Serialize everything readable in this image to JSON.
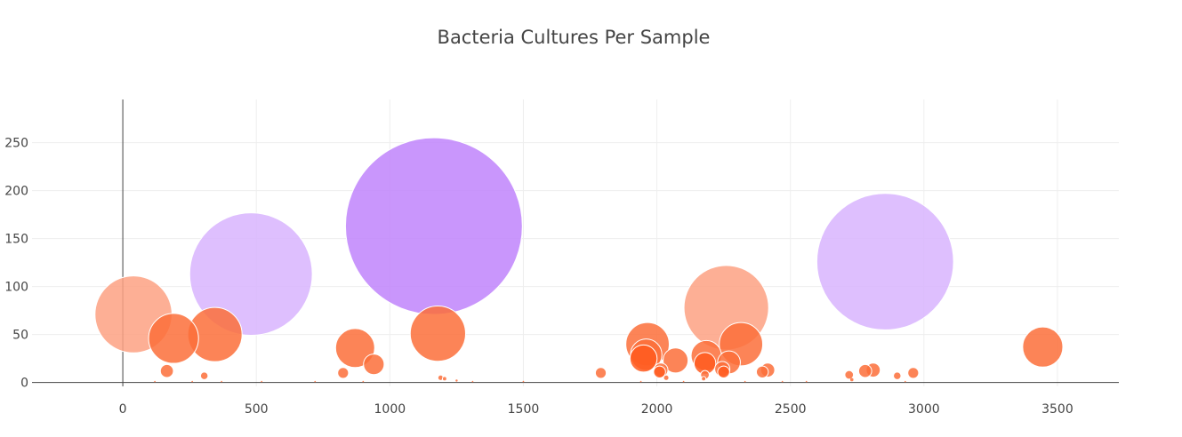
{
  "chart_data": {
    "type": "scatter",
    "title": "Bacteria Cultures Per Sample",
    "xlabel": "",
    "ylabel": "",
    "xlim": [
      -340,
      3730
    ],
    "ylim": [
      -4,
      295
    ],
    "xticks": [
      0,
      500,
      1000,
      1500,
      2000,
      2500,
      3000,
      3500
    ],
    "yticks": [
      0,
      50,
      100,
      150,
      200,
      250
    ],
    "xtick_labels": [
      "0",
      "500",
      "1000",
      "1500",
      "2000",
      "2500",
      "3000",
      "3500"
    ],
    "ytick_labels": [
      "0",
      "50",
      "100",
      "150",
      "200",
      "250"
    ],
    "grid": true,
    "legend": "none",
    "colors": {
      "light_orange": "#fda182",
      "orange": "#fb6f3a",
      "dark_orange": "#ff5a1f",
      "light_purple": "#d8b4fe",
      "purple": "#c084fc"
    },
    "points": [
      {
        "x": 40,
        "y": 71,
        "size": 71,
        "color": "light_orange"
      },
      {
        "x": 165,
        "y": 12,
        "size": 12,
        "color": "orange"
      },
      {
        "x": 190,
        "y": 46,
        "size": 46,
        "color": "orange"
      },
      {
        "x": 305,
        "y": 7,
        "size": 7,
        "color": "orange"
      },
      {
        "x": 345,
        "y": 50,
        "size": 50,
        "color": "orange"
      },
      {
        "x": 480,
        "y": 113,
        "size": 113,
        "color": "light_purple"
      },
      {
        "x": 825,
        "y": 10,
        "size": 10,
        "color": "orange"
      },
      {
        "x": 870,
        "y": 36,
        "size": 36,
        "color": "orange"
      },
      {
        "x": 940,
        "y": 19,
        "size": 19,
        "color": "orange"
      },
      {
        "x": 1165,
        "y": 163,
        "size": 163,
        "color": "purple"
      },
      {
        "x": 1180,
        "y": 51,
        "size": 51,
        "color": "orange"
      },
      {
        "x": 1190,
        "y": 5,
        "size": 5,
        "color": "orange"
      },
      {
        "x": 1205,
        "y": 4,
        "size": 4,
        "color": "orange"
      },
      {
        "x": 1790,
        "y": 10,
        "size": 10,
        "color": "orange"
      },
      {
        "x": 1965,
        "y": 40,
        "size": 40,
        "color": "orange"
      },
      {
        "x": 1960,
        "y": 29,
        "size": 29,
        "color": "orange"
      },
      {
        "x": 1950,
        "y": 25,
        "size": 25,
        "color": "dark_orange"
      },
      {
        "x": 2015,
        "y": 13,
        "size": 13,
        "color": "orange"
      },
      {
        "x": 2010,
        "y": 11,
        "size": 11,
        "color": "dark_orange"
      },
      {
        "x": 2035,
        "y": 5,
        "size": 5,
        "color": "orange"
      },
      {
        "x": 2070,
        "y": 23,
        "size": 23,
        "color": "orange"
      },
      {
        "x": 2185,
        "y": 28,
        "size": 28,
        "color": "orange"
      },
      {
        "x": 2180,
        "y": 20,
        "size": 20,
        "color": "dark_orange"
      },
      {
        "x": 2180,
        "y": 8,
        "size": 8,
        "color": "orange"
      },
      {
        "x": 2175,
        "y": 4,
        "size": 4,
        "color": "orange"
      },
      {
        "x": 2260,
        "y": 78,
        "size": 78,
        "color": "light_orange"
      },
      {
        "x": 2315,
        "y": 40,
        "size": 40,
        "color": "orange"
      },
      {
        "x": 2270,
        "y": 21,
        "size": 21,
        "color": "orange"
      },
      {
        "x": 2245,
        "y": 14,
        "size": 14,
        "color": "orange"
      },
      {
        "x": 2250,
        "y": 11,
        "size": 11,
        "color": "dark_orange"
      },
      {
        "x": 2395,
        "y": 11,
        "size": 11,
        "color": "orange"
      },
      {
        "x": 2415,
        "y": 13,
        "size": 13,
        "color": "orange"
      },
      {
        "x": 2855,
        "y": 126,
        "size": 126,
        "color": "light_purple"
      },
      {
        "x": 2720,
        "y": 8,
        "size": 8,
        "color": "orange"
      },
      {
        "x": 2730,
        "y": 3,
        "size": 3,
        "color": "orange"
      },
      {
        "x": 2780,
        "y": 12,
        "size": 12,
        "color": "orange"
      },
      {
        "x": 2810,
        "y": 13,
        "size": 13,
        "color": "orange"
      },
      {
        "x": 2900,
        "y": 7,
        "size": 7,
        "color": "orange"
      },
      {
        "x": 2960,
        "y": 10,
        "size": 10,
        "color": "orange"
      },
      {
        "x": 3445,
        "y": 37,
        "size": 37,
        "color": "orange"
      },
      {
        "x": 120,
        "y": 1,
        "size": 1,
        "color": "orange"
      },
      {
        "x": 260,
        "y": 1,
        "size": 1,
        "color": "orange"
      },
      {
        "x": 370,
        "y": 1,
        "size": 1,
        "color": "orange"
      },
      {
        "x": 520,
        "y": 1,
        "size": 1,
        "color": "orange"
      },
      {
        "x": 720,
        "y": 1,
        "size": 1,
        "color": "orange"
      },
      {
        "x": 900,
        "y": 1,
        "size": 1,
        "color": "orange"
      },
      {
        "x": 1250,
        "y": 2,
        "size": 2,
        "color": "orange"
      },
      {
        "x": 1310,
        "y": 1,
        "size": 1,
        "color": "orange"
      },
      {
        "x": 1500,
        "y": 1,
        "size": 1,
        "color": "orange"
      },
      {
        "x": 1940,
        "y": 1,
        "size": 1,
        "color": "orange"
      },
      {
        "x": 2100,
        "y": 1,
        "size": 1,
        "color": "orange"
      },
      {
        "x": 2330,
        "y": 1,
        "size": 1,
        "color": "orange"
      },
      {
        "x": 2470,
        "y": 1,
        "size": 1,
        "color": "orange"
      },
      {
        "x": 2560,
        "y": 1,
        "size": 1,
        "color": "orange"
      },
      {
        "x": 2930,
        "y": 1,
        "size": 1,
        "color": "orange"
      }
    ]
  }
}
